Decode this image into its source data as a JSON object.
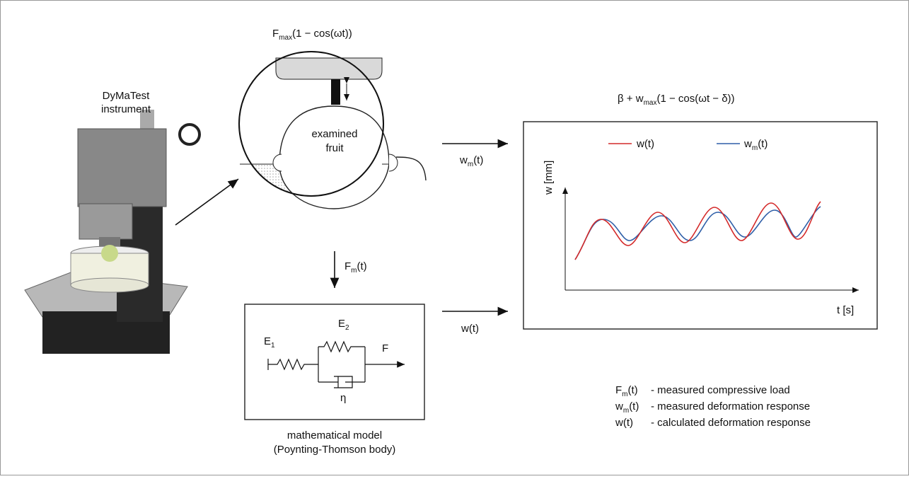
{
  "instrument": {
    "lines": [
      "DyMaTest",
      "instrument"
    ]
  },
  "load_formula": {
    "base": "F",
    "sub": "max",
    "rest": "(1 − cos(ωt))"
  },
  "fruit": {
    "lines": [
      "examined",
      "fruit"
    ]
  },
  "response_formula": {
    "base": "β + w",
    "sub": "max",
    "rest": "(1 − cos(ωt − δ))"
  },
  "arrows": {
    "measured_w": {
      "base": "w",
      "sub": "m",
      "rest": "(t)"
    },
    "measured_F": {
      "base": "F",
      "sub": "m",
      "rest": "(t)"
    },
    "model_w": "w(t)"
  },
  "plot": {
    "legend": [
      {
        "base": "w",
        "rest": "(t)"
      },
      {
        "base": "w",
        "sub": "m",
        "rest": "(t)"
      }
    ],
    "y_label": "w [mm]",
    "x_label": "t [s]"
  },
  "model": {
    "E1": {
      "base": "E",
      "sub": "1"
    },
    "E2": {
      "base": "E",
      "sub": "2"
    },
    "force": "F",
    "eta": "η",
    "caption": [
      "mathematical model",
      "(Poynting-Thomson body)"
    ]
  },
  "notes": [
    {
      "base": "F",
      "sub": "m",
      "rest": "(t)",
      "desc": "- measured compressive load"
    },
    {
      "base": "w",
      "sub": "m",
      "rest": "(t)",
      "desc": "- measured deformation response"
    },
    {
      "base": "w(t)",
      "desc": "- calculated deformation response"
    }
  ]
}
